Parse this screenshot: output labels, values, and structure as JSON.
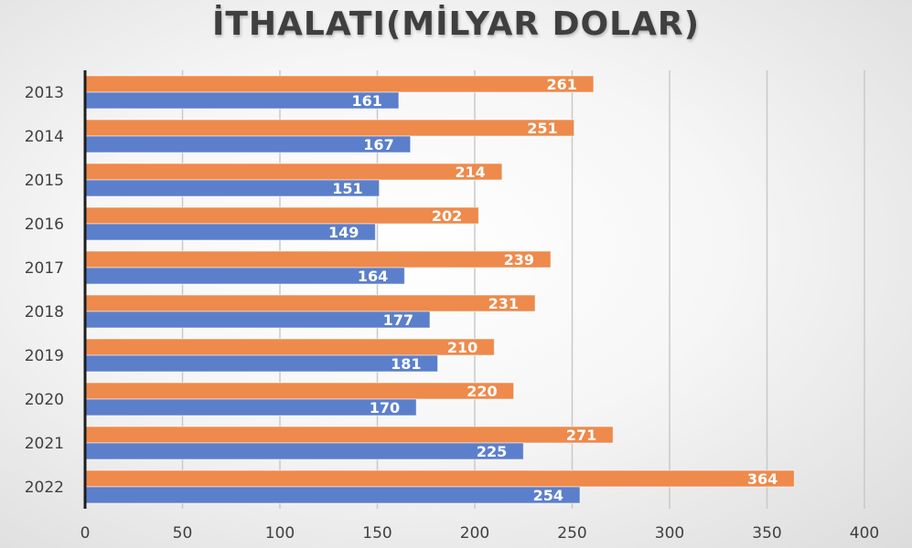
{
  "chart_data": {
    "type": "bar",
    "orientation": "horizontal",
    "title": "İTHALATI(MİLYAR DOLAR)",
    "categories": [
      "2013",
      "2014",
      "2015",
      "2016",
      "2017",
      "2018",
      "2019",
      "2020",
      "2021",
      "2022"
    ],
    "series": [
      {
        "values": [
          261,
          251,
          214,
          202,
          239,
          231,
          210,
          220,
          271,
          364
        ],
        "color": "#ED8A4C"
      },
      {
        "values": [
          161,
          167,
          151,
          149,
          164,
          177,
          181,
          170,
          225,
          254
        ],
        "color": "#5B7FCB"
      }
    ],
    "xlim": [
      0,
      400
    ],
    "xticks": [
      "0",
      "50",
      "100",
      "150",
      "200",
      "250",
      "300",
      "350",
      "400"
    ],
    "grid": "vertical",
    "legend": "none",
    "data_labels": true
  }
}
